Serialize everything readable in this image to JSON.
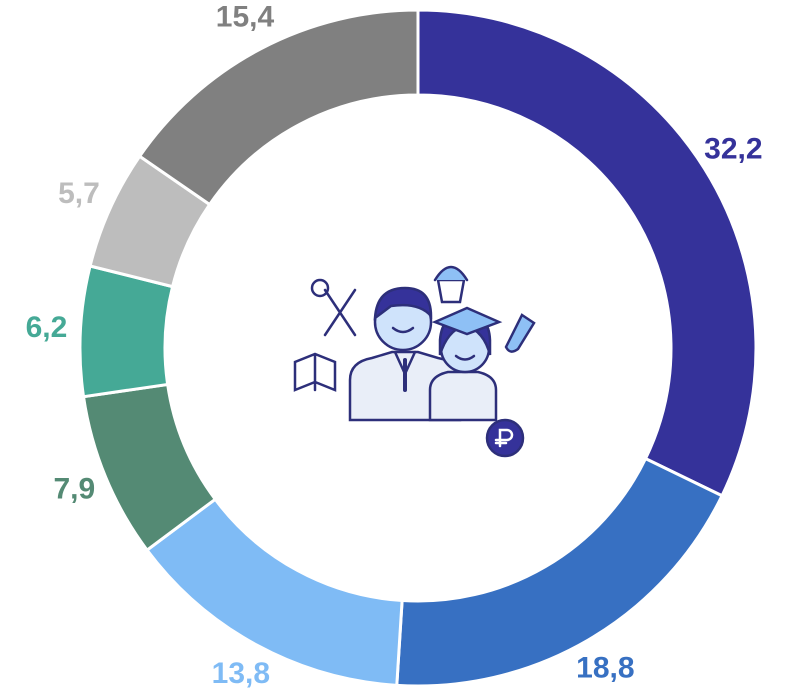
{
  "chart_data": {
    "type": "donut",
    "values": [
      32.2,
      18.8,
      13.8,
      7.9,
      6.2,
      5.7,
      15.4
    ],
    "value_labels": [
      "32,2",
      "18,8",
      "13,8",
      "7,9",
      "6,2",
      "5,7",
      "15,4"
    ],
    "colors": [
      "#35329a",
      "#3770c2",
      "#7fbbf5",
      "#548a74",
      "#45a996",
      "#bdbdbd",
      "#808080"
    ]
  }
}
